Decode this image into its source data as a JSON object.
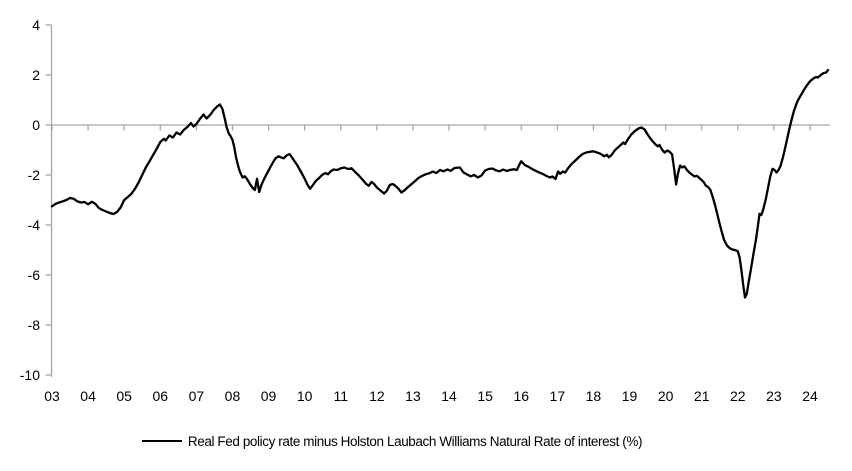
{
  "chart_data": {
    "type": "line",
    "title": "",
    "legend_label": "Real Fed policy rate minus Holston Laubach Williams Natural Rate of interest (%)",
    "legend_position": "bottom-center",
    "grid": "zero-line-only",
    "colors": {
      "line": "#000000",
      "axis": "#a6a6a6",
      "text": "#000000",
      "background": "#ffffff"
    },
    "x_axis": {
      "min": 2003,
      "max": 2024.55,
      "tick_years": [
        2003,
        2004,
        2005,
        2006,
        2007,
        2008,
        2009,
        2010,
        2011,
        2012,
        2013,
        2014,
        2015,
        2016,
        2017,
        2018,
        2019,
        2020,
        2021,
        2022,
        2023,
        2024
      ],
      "tick_labels": [
        "03",
        "04",
        "05",
        "06",
        "07",
        "08",
        "09",
        "10",
        "11",
        "12",
        "13",
        "14",
        "15",
        "16",
        "17",
        "18",
        "19",
        "20",
        "21",
        "22",
        "23",
        "24"
      ]
    },
    "y_axis": {
      "min": -10,
      "max": 4,
      "ticks": [
        4,
        2,
        0,
        -2,
        -4,
        -6,
        -8,
        -10
      ]
    },
    "series": [
      {
        "name": "Real Fed policy rate minus Holston Laubach Williams Natural Rate of interest (%)",
        "points": [
          [
            2003.0,
            -3.25
          ],
          [
            2003.1,
            -3.15
          ],
          [
            2003.2,
            -3.1
          ],
          [
            2003.3,
            -3.05
          ],
          [
            2003.4,
            -3.0
          ],
          [
            2003.5,
            -2.92
          ],
          [
            2003.6,
            -2.95
          ],
          [
            2003.7,
            -3.05
          ],
          [
            2003.8,
            -3.1
          ],
          [
            2003.9,
            -3.08
          ],
          [
            2004.0,
            -3.17
          ],
          [
            2004.1,
            -3.07
          ],
          [
            2004.2,
            -3.15
          ],
          [
            2004.3,
            -3.32
          ],
          [
            2004.4,
            -3.4
          ],
          [
            2004.5,
            -3.46
          ],
          [
            2004.6,
            -3.52
          ],
          [
            2004.7,
            -3.56
          ],
          [
            2004.8,
            -3.48
          ],
          [
            2004.9,
            -3.3
          ],
          [
            2005.0,
            -3.0
          ],
          [
            2005.1,
            -2.88
          ],
          [
            2005.2,
            -2.75
          ],
          [
            2005.3,
            -2.55
          ],
          [
            2005.4,
            -2.3
          ],
          [
            2005.5,
            -2.0
          ],
          [
            2005.6,
            -1.7
          ],
          [
            2005.7,
            -1.45
          ],
          [
            2005.8,
            -1.2
          ],
          [
            2005.9,
            -0.95
          ],
          [
            2006.0,
            -0.68
          ],
          [
            2006.1,
            -0.55
          ],
          [
            2006.15,
            -0.62
          ],
          [
            2006.25,
            -0.42
          ],
          [
            2006.35,
            -0.5
          ],
          [
            2006.45,
            -0.3
          ],
          [
            2006.55,
            -0.38
          ],
          [
            2006.65,
            -0.2
          ],
          [
            2006.75,
            -0.08
          ],
          [
            2006.85,
            0.08
          ],
          [
            2006.92,
            -0.06
          ],
          [
            2007.0,
            0.04
          ],
          [
            2007.1,
            0.25
          ],
          [
            2007.2,
            0.42
          ],
          [
            2007.28,
            0.26
          ],
          [
            2007.38,
            0.4
          ],
          [
            2007.48,
            0.6
          ],
          [
            2007.58,
            0.75
          ],
          [
            2007.65,
            0.82
          ],
          [
            2007.72,
            0.65
          ],
          [
            2007.78,
            0.3
          ],
          [
            2007.84,
            -0.1
          ],
          [
            2007.9,
            -0.35
          ],
          [
            2007.95,
            -0.45
          ],
          [
            2008.0,
            -0.6
          ],
          [
            2008.05,
            -0.9
          ],
          [
            2008.1,
            -1.3
          ],
          [
            2008.15,
            -1.6
          ],
          [
            2008.2,
            -1.85
          ],
          [
            2008.28,
            -2.1
          ],
          [
            2008.34,
            -2.05
          ],
          [
            2008.4,
            -2.15
          ],
          [
            2008.48,
            -2.35
          ],
          [
            2008.55,
            -2.5
          ],
          [
            2008.62,
            -2.6
          ],
          [
            2008.68,
            -2.15
          ],
          [
            2008.74,
            -2.68
          ],
          [
            2008.8,
            -2.4
          ],
          [
            2008.88,
            -2.15
          ],
          [
            2008.95,
            -1.95
          ],
          [
            2009.05,
            -1.68
          ],
          [
            2009.12,
            -1.5
          ],
          [
            2009.2,
            -1.32
          ],
          [
            2009.28,
            -1.25
          ],
          [
            2009.35,
            -1.3
          ],
          [
            2009.42,
            -1.33
          ],
          [
            2009.5,
            -1.22
          ],
          [
            2009.58,
            -1.16
          ],
          [
            2009.65,
            -1.3
          ],
          [
            2009.72,
            -1.45
          ],
          [
            2009.8,
            -1.62
          ],
          [
            2009.9,
            -1.88
          ],
          [
            2010.0,
            -2.15
          ],
          [
            2010.08,
            -2.4
          ],
          [
            2010.15,
            -2.55
          ],
          [
            2010.22,
            -2.42
          ],
          [
            2010.3,
            -2.25
          ],
          [
            2010.4,
            -2.12
          ],
          [
            2010.5,
            -1.98
          ],
          [
            2010.58,
            -1.92
          ],
          [
            2010.65,
            -1.97
          ],
          [
            2010.72,
            -1.85
          ],
          [
            2010.8,
            -1.78
          ],
          [
            2010.9,
            -1.8
          ],
          [
            2011.0,
            -1.73
          ],
          [
            2011.1,
            -1.7
          ],
          [
            2011.2,
            -1.76
          ],
          [
            2011.3,
            -1.73
          ],
          [
            2011.4,
            -1.88
          ],
          [
            2011.5,
            -2.02
          ],
          [
            2011.6,
            -2.18
          ],
          [
            2011.7,
            -2.35
          ],
          [
            2011.78,
            -2.43
          ],
          [
            2011.85,
            -2.28
          ],
          [
            2011.92,
            -2.35
          ],
          [
            2012.0,
            -2.5
          ],
          [
            2012.1,
            -2.62
          ],
          [
            2012.2,
            -2.74
          ],
          [
            2012.28,
            -2.62
          ],
          [
            2012.36,
            -2.4
          ],
          [
            2012.44,
            -2.36
          ],
          [
            2012.52,
            -2.44
          ],
          [
            2012.6,
            -2.55
          ],
          [
            2012.68,
            -2.7
          ],
          [
            2012.76,
            -2.62
          ],
          [
            2012.85,
            -2.5
          ],
          [
            2012.95,
            -2.38
          ],
          [
            2013.05,
            -2.25
          ],
          [
            2013.15,
            -2.12
          ],
          [
            2013.25,
            -2.04
          ],
          [
            2013.35,
            -1.97
          ],
          [
            2013.45,
            -1.93
          ],
          [
            2013.55,
            -1.86
          ],
          [
            2013.65,
            -1.92
          ],
          [
            2013.75,
            -1.8
          ],
          [
            2013.85,
            -1.85
          ],
          [
            2013.95,
            -1.78
          ],
          [
            2014.05,
            -1.83
          ],
          [
            2014.15,
            -1.72
          ],
          [
            2014.3,
            -1.7
          ],
          [
            2014.4,
            -1.9
          ],
          [
            2014.5,
            -1.98
          ],
          [
            2014.6,
            -2.05
          ],
          [
            2014.7,
            -2.0
          ],
          [
            2014.8,
            -2.1
          ],
          [
            2014.9,
            -2.02
          ],
          [
            2015.0,
            -1.82
          ],
          [
            2015.1,
            -1.76
          ],
          [
            2015.2,
            -1.74
          ],
          [
            2015.3,
            -1.81
          ],
          [
            2015.4,
            -1.85
          ],
          [
            2015.5,
            -1.78
          ],
          [
            2015.6,
            -1.84
          ],
          [
            2015.7,
            -1.79
          ],
          [
            2015.8,
            -1.77
          ],
          [
            2015.88,
            -1.8
          ],
          [
            2015.95,
            -1.58
          ],
          [
            2016.0,
            -1.45
          ],
          [
            2016.1,
            -1.6
          ],
          [
            2016.2,
            -1.67
          ],
          [
            2016.3,
            -1.76
          ],
          [
            2016.4,
            -1.83
          ],
          [
            2016.5,
            -1.9
          ],
          [
            2016.6,
            -1.96
          ],
          [
            2016.7,
            -2.04
          ],
          [
            2016.8,
            -2.1
          ],
          [
            2016.87,
            -2.06
          ],
          [
            2016.95,
            -2.16
          ],
          [
            2017.02,
            -1.86
          ],
          [
            2017.08,
            -1.95
          ],
          [
            2017.15,
            -1.86
          ],
          [
            2017.22,
            -1.9
          ],
          [
            2017.3,
            -1.72
          ],
          [
            2017.4,
            -1.55
          ],
          [
            2017.5,
            -1.42
          ],
          [
            2017.6,
            -1.28
          ],
          [
            2017.7,
            -1.16
          ],
          [
            2017.8,
            -1.1
          ],
          [
            2017.9,
            -1.07
          ],
          [
            2018.0,
            -1.05
          ],
          [
            2018.1,
            -1.1
          ],
          [
            2018.2,
            -1.15
          ],
          [
            2018.3,
            -1.25
          ],
          [
            2018.37,
            -1.19
          ],
          [
            2018.43,
            -1.29
          ],
          [
            2018.5,
            -1.2
          ],
          [
            2018.6,
            -1.0
          ],
          [
            2018.7,
            -0.87
          ],
          [
            2018.77,
            -0.78
          ],
          [
            2018.83,
            -0.7
          ],
          [
            2018.88,
            -0.76
          ],
          [
            2018.95,
            -0.58
          ],
          [
            2019.05,
            -0.38
          ],
          [
            2019.15,
            -0.24
          ],
          [
            2019.25,
            -0.14
          ],
          [
            2019.33,
            -0.1
          ],
          [
            2019.42,
            -0.18
          ],
          [
            2019.5,
            -0.38
          ],
          [
            2019.6,
            -0.58
          ],
          [
            2019.7,
            -0.75
          ],
          [
            2019.78,
            -0.85
          ],
          [
            2019.83,
            -0.8
          ],
          [
            2019.9,
            -0.98
          ],
          [
            2019.97,
            -1.1
          ],
          [
            2020.05,
            -1.02
          ],
          [
            2020.12,
            -1.08
          ],
          [
            2020.18,
            -1.18
          ],
          [
            2020.24,
            -1.8
          ],
          [
            2020.29,
            -2.38
          ],
          [
            2020.34,
            -1.95
          ],
          [
            2020.4,
            -1.62
          ],
          [
            2020.46,
            -1.7
          ],
          [
            2020.52,
            -1.65
          ],
          [
            2020.6,
            -1.82
          ],
          [
            2020.7,
            -1.95
          ],
          [
            2020.8,
            -2.06
          ],
          [
            2020.87,
            -2.03
          ],
          [
            2020.95,
            -2.14
          ],
          [
            2021.05,
            -2.27
          ],
          [
            2021.12,
            -2.43
          ],
          [
            2021.18,
            -2.48
          ],
          [
            2021.24,
            -2.6
          ],
          [
            2021.3,
            -2.85
          ],
          [
            2021.36,
            -3.15
          ],
          [
            2021.42,
            -3.5
          ],
          [
            2021.48,
            -3.85
          ],
          [
            2021.55,
            -4.25
          ],
          [
            2021.62,
            -4.6
          ],
          [
            2021.7,
            -4.82
          ],
          [
            2021.78,
            -4.93
          ],
          [
            2021.85,
            -4.98
          ],
          [
            2021.92,
            -5.0
          ],
          [
            2022.0,
            -5.05
          ],
          [
            2022.05,
            -5.3
          ],
          [
            2022.1,
            -5.8
          ],
          [
            2022.15,
            -6.4
          ],
          [
            2022.2,
            -6.9
          ],
          [
            2022.25,
            -6.75
          ],
          [
            2022.3,
            -6.3
          ],
          [
            2022.37,
            -5.7
          ],
          [
            2022.44,
            -5.1
          ],
          [
            2022.5,
            -4.6
          ],
          [
            2022.55,
            -4.1
          ],
          [
            2022.6,
            -3.55
          ],
          [
            2022.65,
            -3.6
          ],
          [
            2022.7,
            -3.4
          ],
          [
            2022.77,
            -3.0
          ],
          [
            2022.84,
            -2.5
          ],
          [
            2022.9,
            -2.05
          ],
          [
            2022.96,
            -1.75
          ],
          [
            2023.02,
            -1.8
          ],
          [
            2023.07,
            -1.9
          ],
          [
            2023.12,
            -1.82
          ],
          [
            2023.18,
            -1.65
          ],
          [
            2023.25,
            -1.3
          ],
          [
            2023.3,
            -1.0
          ],
          [
            2023.36,
            -0.6
          ],
          [
            2023.42,
            -0.2
          ],
          [
            2023.48,
            0.15
          ],
          [
            2023.55,
            0.55
          ],
          [
            2023.65,
            0.95
          ],
          [
            2023.75,
            1.2
          ],
          [
            2023.85,
            1.45
          ],
          [
            2023.93,
            1.62
          ],
          [
            2024.0,
            1.75
          ],
          [
            2024.1,
            1.87
          ],
          [
            2024.17,
            1.92
          ],
          [
            2024.22,
            1.9
          ],
          [
            2024.3,
            2.0
          ],
          [
            2024.38,
            2.08
          ],
          [
            2024.45,
            2.1
          ],
          [
            2024.5,
            2.2
          ]
        ]
      }
    ]
  }
}
